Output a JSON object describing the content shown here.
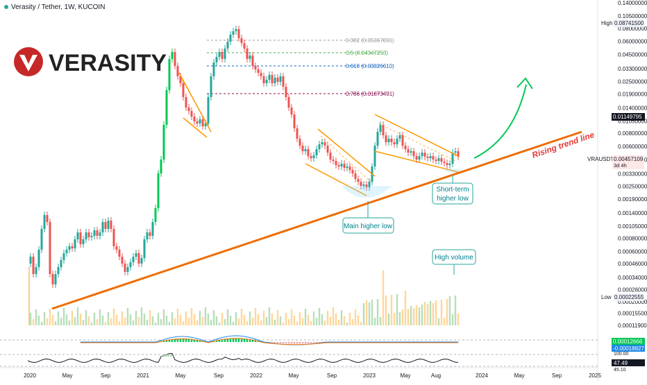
{
  "header": {
    "symbol": "Verasity / Tether, 1W, KUCOIN"
  },
  "logo": {
    "text": "VERASITY",
    "brand_color": "#c62828"
  },
  "chart_data": {
    "type": "candlestick",
    "scale": "log",
    "y_ticks": [
      "0.14000000",
      "0.10500000",
      "0.08000000",
      "0.06000000",
      "0.04500000",
      "0.03300000",
      "0.02500000",
      "0.01900000",
      "0.01400000",
      "0.01050000",
      "0.00800000",
      "0.00600000",
      "0.00450000",
      "0.00330000",
      "0.00250000",
      "0.00190000",
      "0.00140000",
      "0.00105000",
      "0.00080000",
      "0.00060000",
      "0.00046000",
      "0.00034000",
      "0.00026000",
      "0.00020000",
      "0.00015500",
      "0.00011900"
    ],
    "x_ticks": [
      "2020",
      "May",
      "Sep",
      "2021",
      "May",
      "Sep",
      "2022",
      "May",
      "Sep",
      "2023",
      "May",
      "Aug",
      "2024",
      "May",
      "Sep",
      "2025"
    ],
    "price_labels": {
      "high": {
        "label": "High",
        "value": "0.08741500"
      },
      "current": {
        "label": "VRAUSDT",
        "value": "0.00457109",
        "sub": "3d 4h"
      },
      "resistance": {
        "value": "0.01149795"
      },
      "low": {
        "label": "Low",
        "value": "0.00022555"
      }
    },
    "fibonacci": [
      {
        "label": "0.382 (0.05367896)",
        "color": "#9e9e9e"
      },
      {
        "label": "0.5 (0.04347253)",
        "color": "#4caf50"
      },
      {
        "label": "0.618 (0.03326610)",
        "color": "#1565c0"
      },
      {
        "label": "0.786 (0.01873491)",
        "color": "#880e4f"
      }
    ],
    "annotations": {
      "trendline": "Rising trend line",
      "main_low": "Main higher low",
      "short_low_1": "Short-term",
      "short_low_2": "higher low",
      "volume": "High volume"
    },
    "macd_labels": {
      "macd": "0.00012666",
      "signal": "-0.00018827",
      "extra": "100.00"
    },
    "rsi_label": {
      "value": "47.49",
      "extra": "45.10"
    },
    "colors": {
      "up": "#26a69a",
      "up_bright": "#00c853",
      "down": "#ef5350",
      "trend": "#ef6c00",
      "channel": "#ff9800",
      "arrow": "#00c853"
    }
  }
}
